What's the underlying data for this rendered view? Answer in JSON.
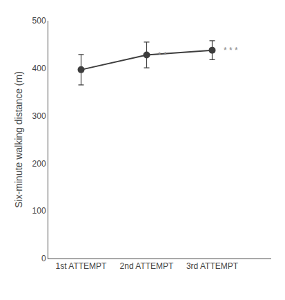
{
  "chart_data": {
    "type": "line",
    "x": [
      1,
      2,
      3
    ],
    "xlim": [
      0.5,
      3.9
    ],
    "xticks": [
      {
        "value": 1,
        "label": "1st ATTEMPT"
      },
      {
        "value": 2,
        "label": "2nd ATTEMPT"
      },
      {
        "value": 3,
        "label": "3rd ATTEMPT"
      }
    ],
    "ylabel": "Six-minute walking distance (m)",
    "ylim": [
      0,
      500
    ],
    "yticks": [
      0,
      100,
      200,
      300,
      400,
      500
    ],
    "series": [
      {
        "values": [
          397,
          428,
          438
        ],
        "errors": [
          32,
          27,
          20
        ],
        "color": "#3d3d3d",
        "marker": "circle",
        "line_style": "solid"
      }
    ],
    "annotations": [
      {
        "x": 2,
        "y": 428,
        "text": "* *",
        "color": "#888888"
      },
      {
        "x": 3,
        "y": 438,
        "text": "* * *",
        "color": "#888888"
      }
    ],
    "grid": false
  }
}
